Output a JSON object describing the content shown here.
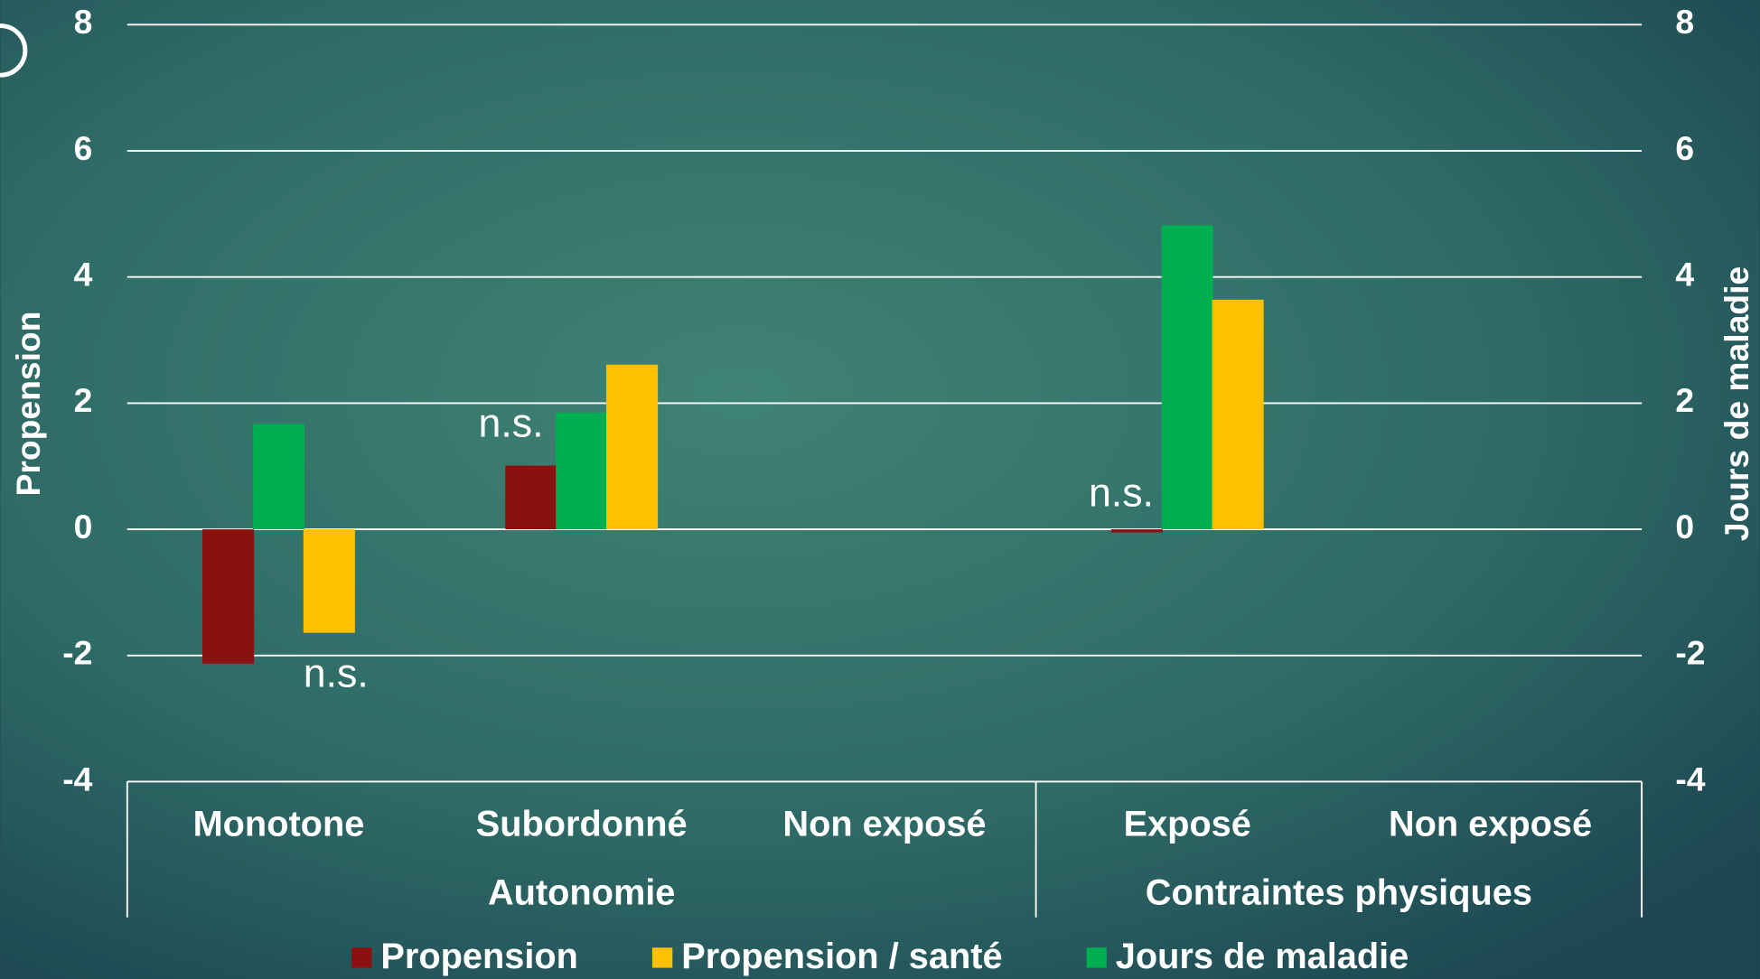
{
  "chart_data": {
    "type": "bar",
    "categories": [
      "Monotone",
      "Subordonné",
      "Non exposé",
      "Exposé",
      "Non exposé"
    ],
    "groups": [
      {
        "name": "Autonomie",
        "count": 3
      },
      {
        "name": "Contraintes physiques",
        "count": 2
      }
    ],
    "series": [
      {
        "name": "Propension",
        "color": "#8b1111",
        "values": [
          -2.13,
          1.01,
          null,
          -0.05,
          null
        ]
      },
      {
        "name": "Propension / santé",
        "color": "#ffc000",
        "values": [
          -1.64,
          2.61,
          null,
          3.64,
          null
        ]
      },
      {
        "name": "Jours de maladie",
        "color": "#00b050",
        "axis": "y2",
        "values": [
          1.67,
          1.85,
          null,
          4.82,
          null
        ]
      }
    ],
    "ylabel": "Propension",
    "y2label": "Jours de maladie",
    "ylim": [
      -4,
      8
    ],
    "yticks": [
      -4,
      -2,
      0,
      2,
      4,
      6,
      8
    ],
    "y2lim": [
      -4,
      8
    ],
    "y2ticks": [
      -4,
      -2,
      0,
      2,
      4,
      6,
      8
    ],
    "annotations": [
      "n.s.",
      "n.s.",
      "n.s."
    ],
    "grid": true,
    "legend": "bottom"
  }
}
